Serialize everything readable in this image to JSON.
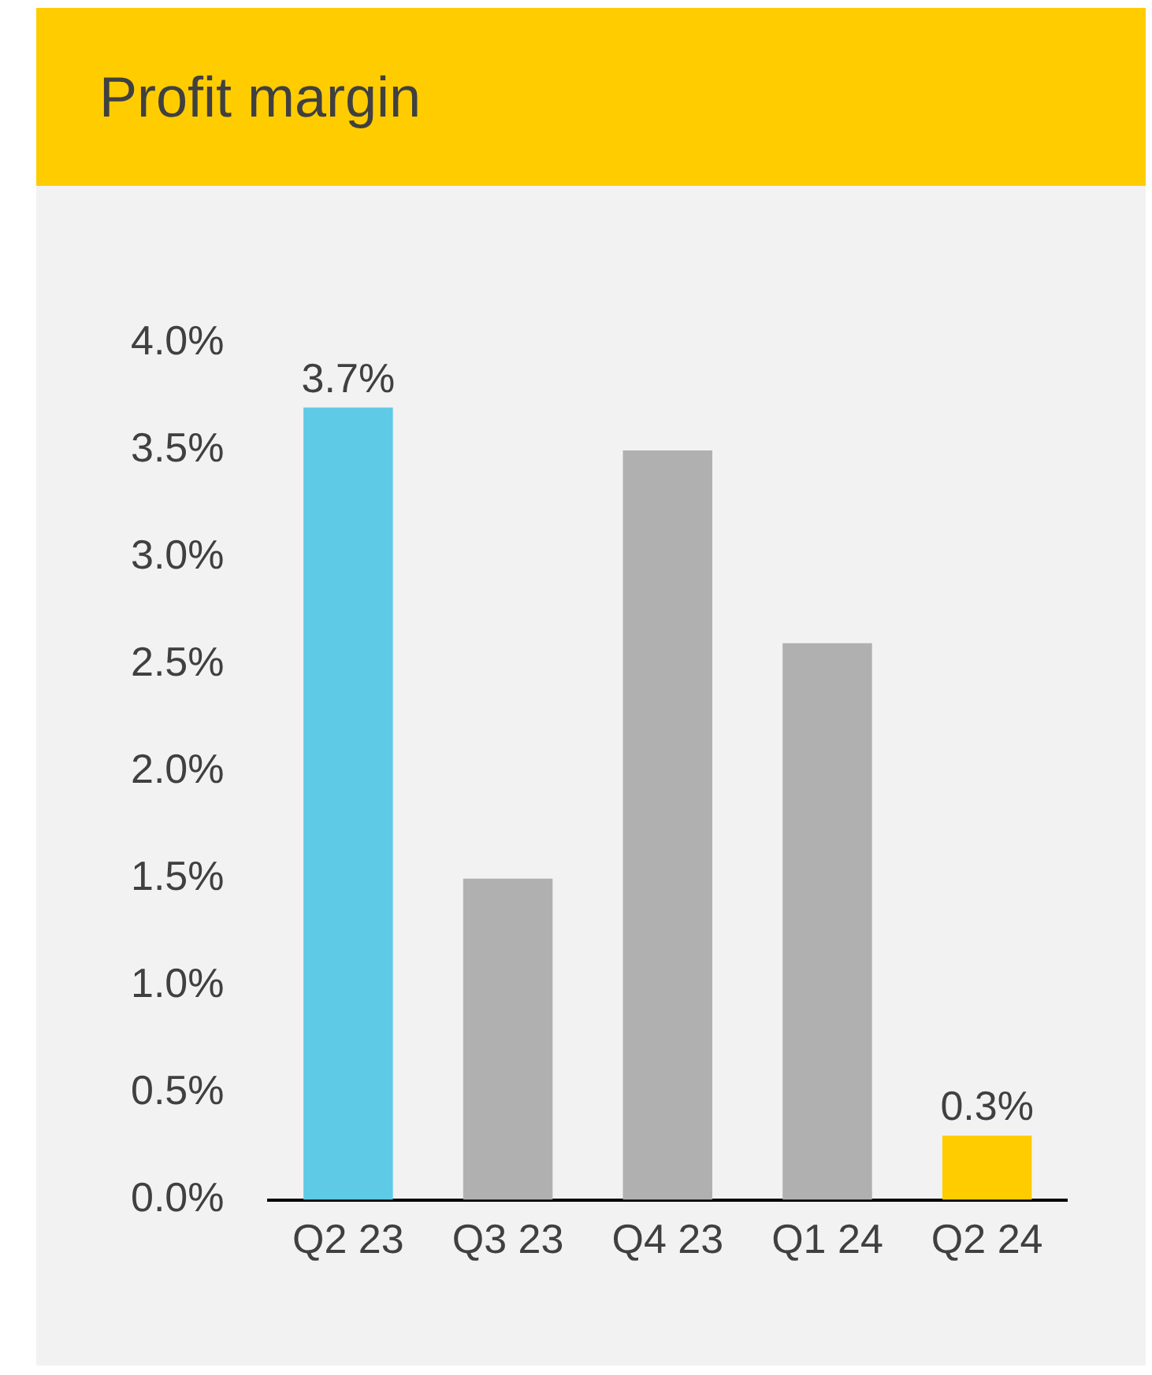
{
  "chart_data": {
    "type": "bar",
    "title": "Profit margin",
    "categories": [
      "Q2 23",
      "Q3 23",
      "Q4 23",
      "Q1 24",
      "Q2 24"
    ],
    "values": [
      3.7,
      1.5,
      3.5,
      2.6,
      0.3
    ],
    "colors": [
      "#5ecae5",
      "#b0b0b0",
      "#b0b0b0",
      "#b0b0b0",
      "#ffcc00"
    ],
    "value_labels": [
      "3.7%",
      null,
      null,
      null,
      "0.3%"
    ],
    "ylim": [
      0,
      4
    ],
    "yticks": [
      {
        "value": 0,
        "label": "0.0%"
      },
      {
        "value": 0.5,
        "label": "0.5%"
      },
      {
        "value": 1,
        "label": "1.0%"
      },
      {
        "value": 1.5,
        "label": "1.5%"
      },
      {
        "value": 2,
        "label": "2.0%"
      },
      {
        "value": 2.5,
        "label": "2.5%"
      },
      {
        "value": 3,
        "label": "3.0%"
      },
      {
        "value": 3.5,
        "label": "3.5%"
      },
      {
        "value": 4,
        "label": "4.0%"
      }
    ]
  }
}
